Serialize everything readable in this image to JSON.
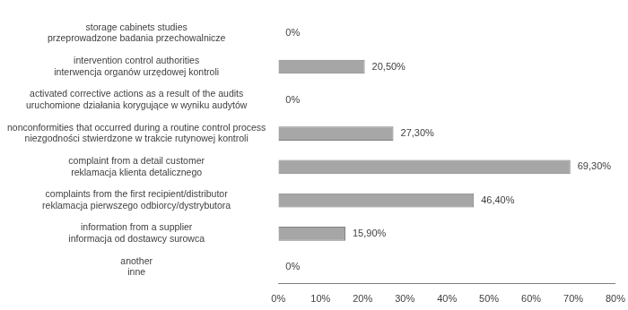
{
  "chart_data": {
    "type": "bar",
    "orientation": "horizontal",
    "categories": [
      [
        "storage cabinets studies",
        "przeprowadzone badania przechowalnicze"
      ],
      [
        "intervention control authorities",
        "interwencja organów urzędowej kontroli"
      ],
      [
        "activated corrective actions as a result of the audits",
        "uruchomione działania korygujące w wyniku audytów"
      ],
      [
        "nonconformities that occurred during a routine control process",
        "niezgodności stwierdzone w trakcie rutynowej kontroli"
      ],
      [
        "complaint from a detail customer",
        "reklamacja klienta detalicznego"
      ],
      [
        "complaints from the first recipient/distributor",
        "reklamacja pierwszego odbiorcy/dystrybutora"
      ],
      [
        "information from a supplier",
        "informacja od dostawcy surowca"
      ],
      [
        "another",
        "inne"
      ]
    ],
    "values": [
      0,
      20.5,
      0,
      27.3,
      69.3,
      46.4,
      15.9,
      0
    ],
    "value_labels": [
      "0%",
      "20,50%",
      "0%",
      "27,30%",
      "69,30%",
      "46,40%",
      "15,90%",
      "0%"
    ],
    "data_labels": true,
    "color": "#a6a6a6",
    "xlim": [
      0,
      80
    ],
    "xticks": [
      {
        "value": 0,
        "label": "0%"
      },
      {
        "value": 10,
        "label": "10%"
      },
      {
        "value": 20,
        "label": "20%"
      },
      {
        "value": 30,
        "label": "30%"
      },
      {
        "value": 40,
        "label": "40%"
      },
      {
        "value": 50,
        "label": "50%"
      },
      {
        "value": 60,
        "label": "60%"
      },
      {
        "value": 70,
        "label": "70%"
      },
      {
        "value": 80,
        "label": "80%"
      }
    ],
    "grid": false
  }
}
